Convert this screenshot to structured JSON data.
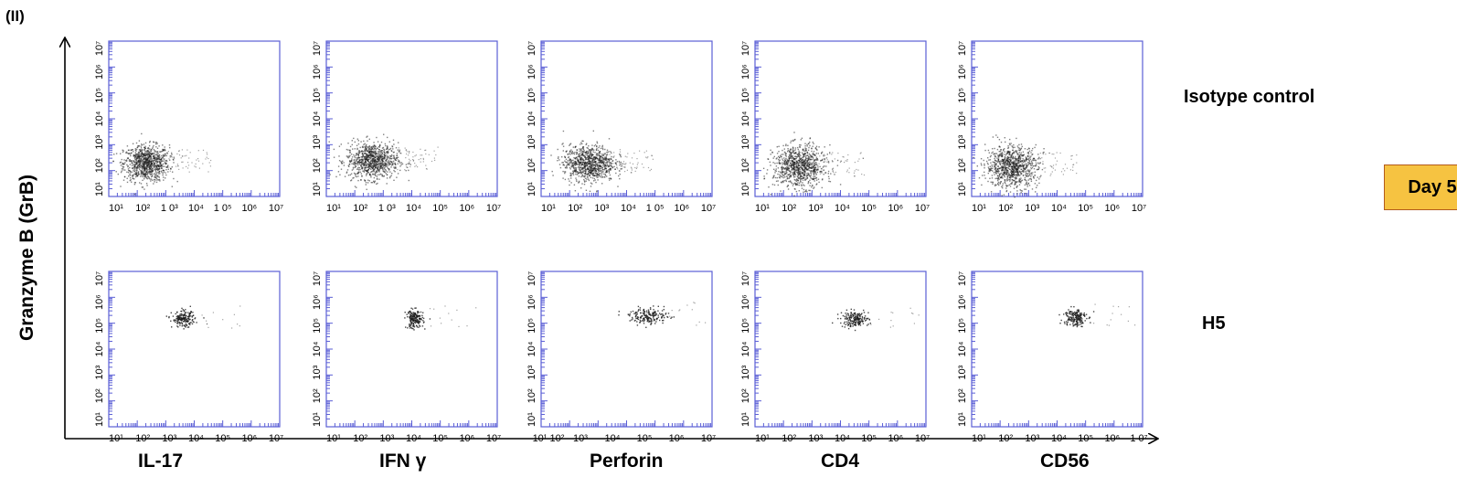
{
  "panel_label": "(II)",
  "y_axis_label": "Granzyme B (GrB)",
  "day_label": "Day 5",
  "rows": [
    {
      "label": "Isotype control"
    },
    {
      "label": "H5"
    }
  ],
  "markers": [
    "IL-17",
    "IFN γ",
    "Perforin",
    "CD4",
    "CD56"
  ],
  "colors": {
    "frame": "#5b5fd6",
    "dots": "#1a1a1a",
    "day_box_fill": "#f6c341",
    "day_box_border": "#b35b1d"
  },
  "chart_data": [
    {
      "type": "scatter",
      "row": "Isotype control",
      "marker": "IL-17",
      "xlabel": "",
      "ylabel": "",
      "xscale": "log",
      "yscale": "log",
      "xlim": [
        10,
        10000000
      ],
      "ylim": [
        10,
        10000000
      ],
      "x_ticks": [
        "10¹",
        "10²",
        "1 0³",
        "10⁴",
        "1 0⁵",
        "10⁶",
        "10⁷"
      ],
      "y_ticks": [
        "10¹",
        "10²",
        "10³",
        "10⁴",
        "10⁵",
        "10⁶",
        "10⁷"
      ],
      "population": {
        "center_x": 200,
        "center_y": 200,
        "spread_x_decades": 0.4,
        "spread_y_decades": 0.35
      }
    },
    {
      "type": "scatter",
      "row": "Isotype control",
      "marker": "IFN γ",
      "xlabel": "",
      "ylabel": "",
      "xscale": "log",
      "yscale": "log",
      "xlim": [
        10,
        10000000
      ],
      "ylim": [
        10,
        10000000
      ],
      "x_ticks": [
        "10¹",
        "10²",
        "1 0³",
        "10⁴",
        "10⁵",
        "10⁶",
        "10⁷"
      ],
      "y_ticks": [
        "10¹",
        "10²",
        "10³",
        "10⁴",
        "10⁵",
        "10⁶",
        "10⁷"
      ],
      "population": {
        "center_x": 400,
        "center_y": 250,
        "spread_x_decades": 0.45,
        "spread_y_decades": 0.35
      }
    },
    {
      "type": "scatter",
      "row": "Isotype control",
      "marker": "Perforin",
      "xlabel": "",
      "ylabel": "",
      "xscale": "log",
      "yscale": "log",
      "xlim": [
        10,
        10000000
      ],
      "ylim": [
        10,
        10000000
      ],
      "x_ticks": [
        "10¹",
        "10²",
        "10³",
        "10⁴",
        "1 0⁵",
        "10⁶",
        "10⁷"
      ],
      "y_ticks": [
        "10¹",
        "10²",
        "10³",
        "10⁴",
        "10⁵",
        "10⁶",
        "10⁷"
      ],
      "population": {
        "center_x": 450,
        "center_y": 200,
        "spread_x_decades": 0.45,
        "spread_y_decades": 0.35
      }
    },
    {
      "type": "scatter",
      "row": "Isotype control",
      "marker": "CD4",
      "xlabel": "",
      "ylabel": "",
      "xscale": "log",
      "yscale": "log",
      "xlim": [
        10,
        10000000
      ],
      "ylim": [
        10,
        10000000
      ],
      "x_ticks": [
        "10¹",
        "10²",
        "10³",
        "10⁴",
        "10⁵",
        "10⁶",
        "10⁷"
      ],
      "y_ticks": [
        "10¹",
        "10²",
        "10³",
        "10⁴",
        "10⁵",
        "10⁶",
        "10⁷"
      ],
      "population": {
        "center_x": 350,
        "center_y": 150,
        "spread_x_decades": 0.45,
        "spread_y_decades": 0.4
      }
    },
    {
      "type": "scatter",
      "row": "Isotype control",
      "marker": "CD56",
      "xlabel": "",
      "ylabel": "",
      "xscale": "log",
      "yscale": "log",
      "xlim": [
        10,
        10000000
      ],
      "ylim": [
        10,
        10000000
      ],
      "x_ticks": [
        "10¹",
        "10²",
        "10³",
        "10⁴",
        "10⁵",
        "10⁶",
        "10⁷"
      ],
      "y_ticks": [
        "10¹",
        "10²",
        "10³",
        "10⁴",
        "10⁵",
        "10⁶",
        "10⁷"
      ],
      "population": {
        "center_x": 250,
        "center_y": 150,
        "spread_x_decades": 0.45,
        "spread_y_decades": 0.4
      }
    },
    {
      "type": "scatter",
      "row": "H5",
      "marker": "IL-17",
      "xlabel": "",
      "ylabel": "",
      "xscale": "log",
      "yscale": "log",
      "xlim": [
        10,
        10000000
      ],
      "ylim": [
        10,
        10000000
      ],
      "x_ticks": [
        "10¹",
        "10²",
        "10³",
        "10⁴",
        "10⁵",
        "10⁶",
        "10⁷"
      ],
      "y_ticks": [
        "10¹",
        "10²",
        "10³",
        "10⁴",
        "10⁵",
        "10⁶",
        "10⁷"
      ],
      "population": {
        "center_x": 4000,
        "center_y": 150000,
        "spread_x_decades": 0.2,
        "spread_y_decades": 0.15
      }
    },
    {
      "type": "scatter",
      "row": "H5",
      "marker": "IFN γ",
      "xlabel": "",
      "ylabel": "",
      "xscale": "log",
      "yscale": "log",
      "xlim": [
        10,
        10000000
      ],
      "ylim": [
        10,
        10000000
      ],
      "x_ticks": [
        "10¹",
        "10²",
        "10³",
        "10⁴",
        "10⁵",
        "10⁶",
        "10⁷"
      ],
      "y_ticks": [
        "10¹",
        "10²",
        "10³",
        "10⁴",
        "10⁵",
        "10⁶",
        "10⁷"
      ],
      "population": {
        "center_x": 12000,
        "center_y": 150000,
        "spread_x_decades": 0.15,
        "spread_y_decades": 0.18
      }
    },
    {
      "type": "scatter",
      "row": "H5",
      "marker": "Perforin",
      "xlabel": "",
      "ylabel": "",
      "xscale": "log",
      "yscale": "log",
      "xlim": [
        10,
        10000000
      ],
      "ylim": [
        10,
        10000000
      ],
      "x_ticks": [
        "10¹ 10²",
        "10³",
        "10⁴",
        "10⁵",
        "10⁶",
        "10⁷"
      ],
      "y_ticks": [
        "10¹",
        "10²",
        "10³",
        "10⁴",
        "10⁵",
        "10⁶",
        "10⁷"
      ],
      "population": {
        "center_x": 60000,
        "center_y": 200000,
        "spread_x_decades": 0.35,
        "spread_y_decades": 0.15
      }
    },
    {
      "type": "scatter",
      "row": "H5",
      "marker": "CD4",
      "xlabel": "",
      "ylabel": "",
      "xscale": "log",
      "yscale": "log",
      "xlim": [
        10,
        10000000
      ],
      "ylim": [
        10,
        10000000
      ],
      "x_ticks": [
        "10¹",
        "10²",
        "10³",
        "10⁴",
        "10⁵",
        "10⁶",
        "10⁷"
      ],
      "y_ticks": [
        "10¹",
        "10²",
        "10³",
        "10⁴",
        "10⁵",
        "10⁶",
        "10⁷"
      ],
      "population": {
        "center_x": 30000,
        "center_y": 150000,
        "spread_x_decades": 0.25,
        "spread_y_decades": 0.15
      }
    },
    {
      "type": "scatter",
      "row": "H5",
      "marker": "CD56",
      "xlabel": "",
      "ylabel": "",
      "xscale": "log",
      "yscale": "log",
      "xlim": [
        10,
        10000000
      ],
      "ylim": [
        10,
        10000000
      ],
      "x_ticks": [
        "10¹",
        "10²",
        "10³",
        "10⁴",
        "10⁵",
        "10⁶",
        "1 0⁷"
      ],
      "y_ticks": [
        "10¹",
        "10²",
        "10³",
        "10⁴",
        "10⁵",
        "10⁶",
        "10⁷"
      ],
      "population": {
        "center_x": 40000,
        "center_y": 180000,
        "spread_x_decades": 0.2,
        "spread_y_decades": 0.18
      }
    }
  ]
}
